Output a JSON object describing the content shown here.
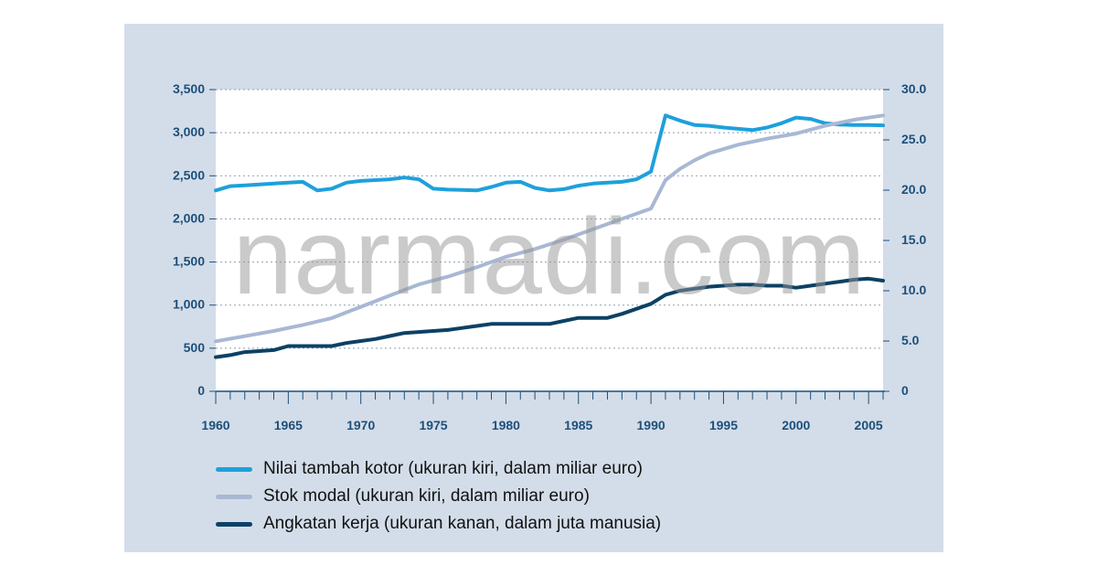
{
  "watermark": "narmadi.com",
  "chart_data": {
    "type": "line",
    "title": "",
    "xlabel": "",
    "ylabel": "",
    "xlim": [
      1960,
      2006
    ],
    "ylim_left": [
      0,
      3500
    ],
    "ylim_right": [
      0,
      30
    ],
    "grid": true,
    "legend_position": "bottom-left",
    "x_ticks": [
      "1960",
      "1965",
      "1970",
      "1975",
      "1980",
      "1985",
      "1990",
      "1995",
      "2000",
      "2005"
    ],
    "y_left_ticks": [
      "0",
      "500",
      "1,000",
      "1,500",
      "2,000",
      "2,500",
      "3,000",
      "3,500"
    ],
    "y_right_ticks": [
      "0",
      "5.0",
      "10.0",
      "15.0",
      "20.0",
      "25.0",
      "30.0"
    ],
    "series": [
      {
        "name": "Nilai tambah kotor (ukuran kiri, dalam miliar euro)",
        "axis": "left",
        "color": "#1ea0dc",
        "points": [
          [
            1960,
            2330
          ],
          [
            1961,
            2380
          ],
          [
            1962,
            2390
          ],
          [
            1963,
            2400
          ],
          [
            1964,
            2410
          ],
          [
            1965,
            2420
          ],
          [
            1966,
            2430
          ],
          [
            1967,
            2330
          ],
          [
            1968,
            2350
          ],
          [
            1969,
            2420
          ],
          [
            1970,
            2440
          ],
          [
            1971,
            2450
          ],
          [
            1972,
            2460
          ],
          [
            1973,
            2480
          ],
          [
            1974,
            2460
          ],
          [
            1975,
            2350
          ],
          [
            1976,
            2340
          ],
          [
            1977,
            2335
          ],
          [
            1978,
            2330
          ],
          [
            1979,
            2370
          ],
          [
            1980,
            2420
          ],
          [
            1981,
            2430
          ],
          [
            1982,
            2360
          ],
          [
            1983,
            2330
          ],
          [
            1984,
            2345
          ],
          [
            1985,
            2385
          ],
          [
            1986,
            2410
          ],
          [
            1987,
            2420
          ],
          [
            1988,
            2430
          ],
          [
            1989,
            2460
          ],
          [
            1990,
            2550
          ],
          [
            1991,
            3200
          ],
          [
            1992,
            3140
          ],
          [
            1993,
            3090
          ],
          [
            1994,
            3080
          ],
          [
            1995,
            3060
          ],
          [
            1996,
            3045
          ],
          [
            1997,
            3030
          ],
          [
            1998,
            3060
          ],
          [
            1999,
            3110
          ],
          [
            2000,
            3175
          ],
          [
            2001,
            3160
          ],
          [
            2002,
            3110
          ],
          [
            2003,
            3095
          ],
          [
            2004,
            3090
          ],
          [
            2005,
            3090
          ],
          [
            2006,
            3085
          ]
        ]
      },
      {
        "name": "Stok modal (ukuran kiri, dalam miliar euro)",
        "axis": "left",
        "color": "#a8b8d4",
        "points": [
          [
            1960,
            580
          ],
          [
            1962,
            640
          ],
          [
            1964,
            700
          ],
          [
            1966,
            770
          ],
          [
            1968,
            850
          ],
          [
            1970,
            980
          ],
          [
            1972,
            1110
          ],
          [
            1974,
            1240
          ],
          [
            1976,
            1330
          ],
          [
            1978,
            1440
          ],
          [
            1980,
            1560
          ],
          [
            1982,
            1650
          ],
          [
            1984,
            1760
          ],
          [
            1986,
            1880
          ],
          [
            1988,
            2000
          ],
          [
            1990,
            2120
          ],
          [
            1991,
            2450
          ],
          [
            1992,
            2580
          ],
          [
            1993,
            2680
          ],
          [
            1994,
            2760
          ],
          [
            1995,
            2810
          ],
          [
            1996,
            2860
          ],
          [
            1998,
            2930
          ],
          [
            2000,
            2990
          ],
          [
            2002,
            3080
          ],
          [
            2004,
            3150
          ],
          [
            2006,
            3200
          ]
        ]
      },
      {
        "name": "Angkatan kerja (ukuran kanan, dalam juta manusia)",
        "axis": "right",
        "color": "#0c4166",
        "points": [
          [
            1960,
            3.4
          ],
          [
            1961,
            3.6
          ],
          [
            1962,
            3.9
          ],
          [
            1963,
            4.0
          ],
          [
            1964,
            4.1
          ],
          [
            1965,
            4.5
          ],
          [
            1966,
            4.5
          ],
          [
            1967,
            4.5
          ],
          [
            1968,
            4.5
          ],
          [
            1969,
            4.8
          ],
          [
            1970,
            5.0
          ],
          [
            1971,
            5.2
          ],
          [
            1972,
            5.5
          ],
          [
            1973,
            5.8
          ],
          [
            1974,
            5.9
          ],
          [
            1975,
            6.0
          ],
          [
            1976,
            6.1
          ],
          [
            1977,
            6.3
          ],
          [
            1978,
            6.5
          ],
          [
            1979,
            6.7
          ],
          [
            1980,
            6.7
          ],
          [
            1981,
            6.7
          ],
          [
            1982,
            6.7
          ],
          [
            1983,
            6.7
          ],
          [
            1984,
            7.0
          ],
          [
            1985,
            7.3
          ],
          [
            1986,
            7.3
          ],
          [
            1987,
            7.3
          ],
          [
            1988,
            7.7
          ],
          [
            1989,
            8.2
          ],
          [
            1990,
            8.7
          ],
          [
            1991,
            9.6
          ],
          [
            1992,
            10.0
          ],
          [
            1993,
            10.2
          ],
          [
            1994,
            10.4
          ],
          [
            1995,
            10.5
          ],
          [
            1996,
            10.6
          ],
          [
            1997,
            10.6
          ],
          [
            1998,
            10.5
          ],
          [
            1999,
            10.5
          ],
          [
            2000,
            10.3
          ],
          [
            2001,
            10.5
          ],
          [
            2002,
            10.7
          ],
          [
            2003,
            10.9
          ],
          [
            2004,
            11.1
          ],
          [
            2005,
            11.2
          ],
          [
            2006,
            11.0
          ]
        ]
      }
    ]
  }
}
